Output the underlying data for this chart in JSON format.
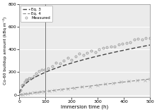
{
  "title": "",
  "xlabel": "Immersion time (h)",
  "ylabel": "Co-60 buildup amount (kBq m⁻²)",
  "xlim": [
    0,
    500
  ],
  "ylim": [
    -20,
    800
  ],
  "yticks": [
    0,
    200,
    400,
    600,
    800
  ],
  "xticks": [
    0,
    100,
    200,
    300,
    400,
    500
  ],
  "vline_x": 100,
  "legend_labels": [
    "Measured",
    "Eq. 3",
    "Eq. 4"
  ],
  "eq3_color": "#444444",
  "eq4_color": "#888888",
  "measured_color": "#888888",
  "eq4_scatter_color": "#aaaaaa",
  "background_color": "#ebebeb",
  "grid_color": "#ffffff"
}
